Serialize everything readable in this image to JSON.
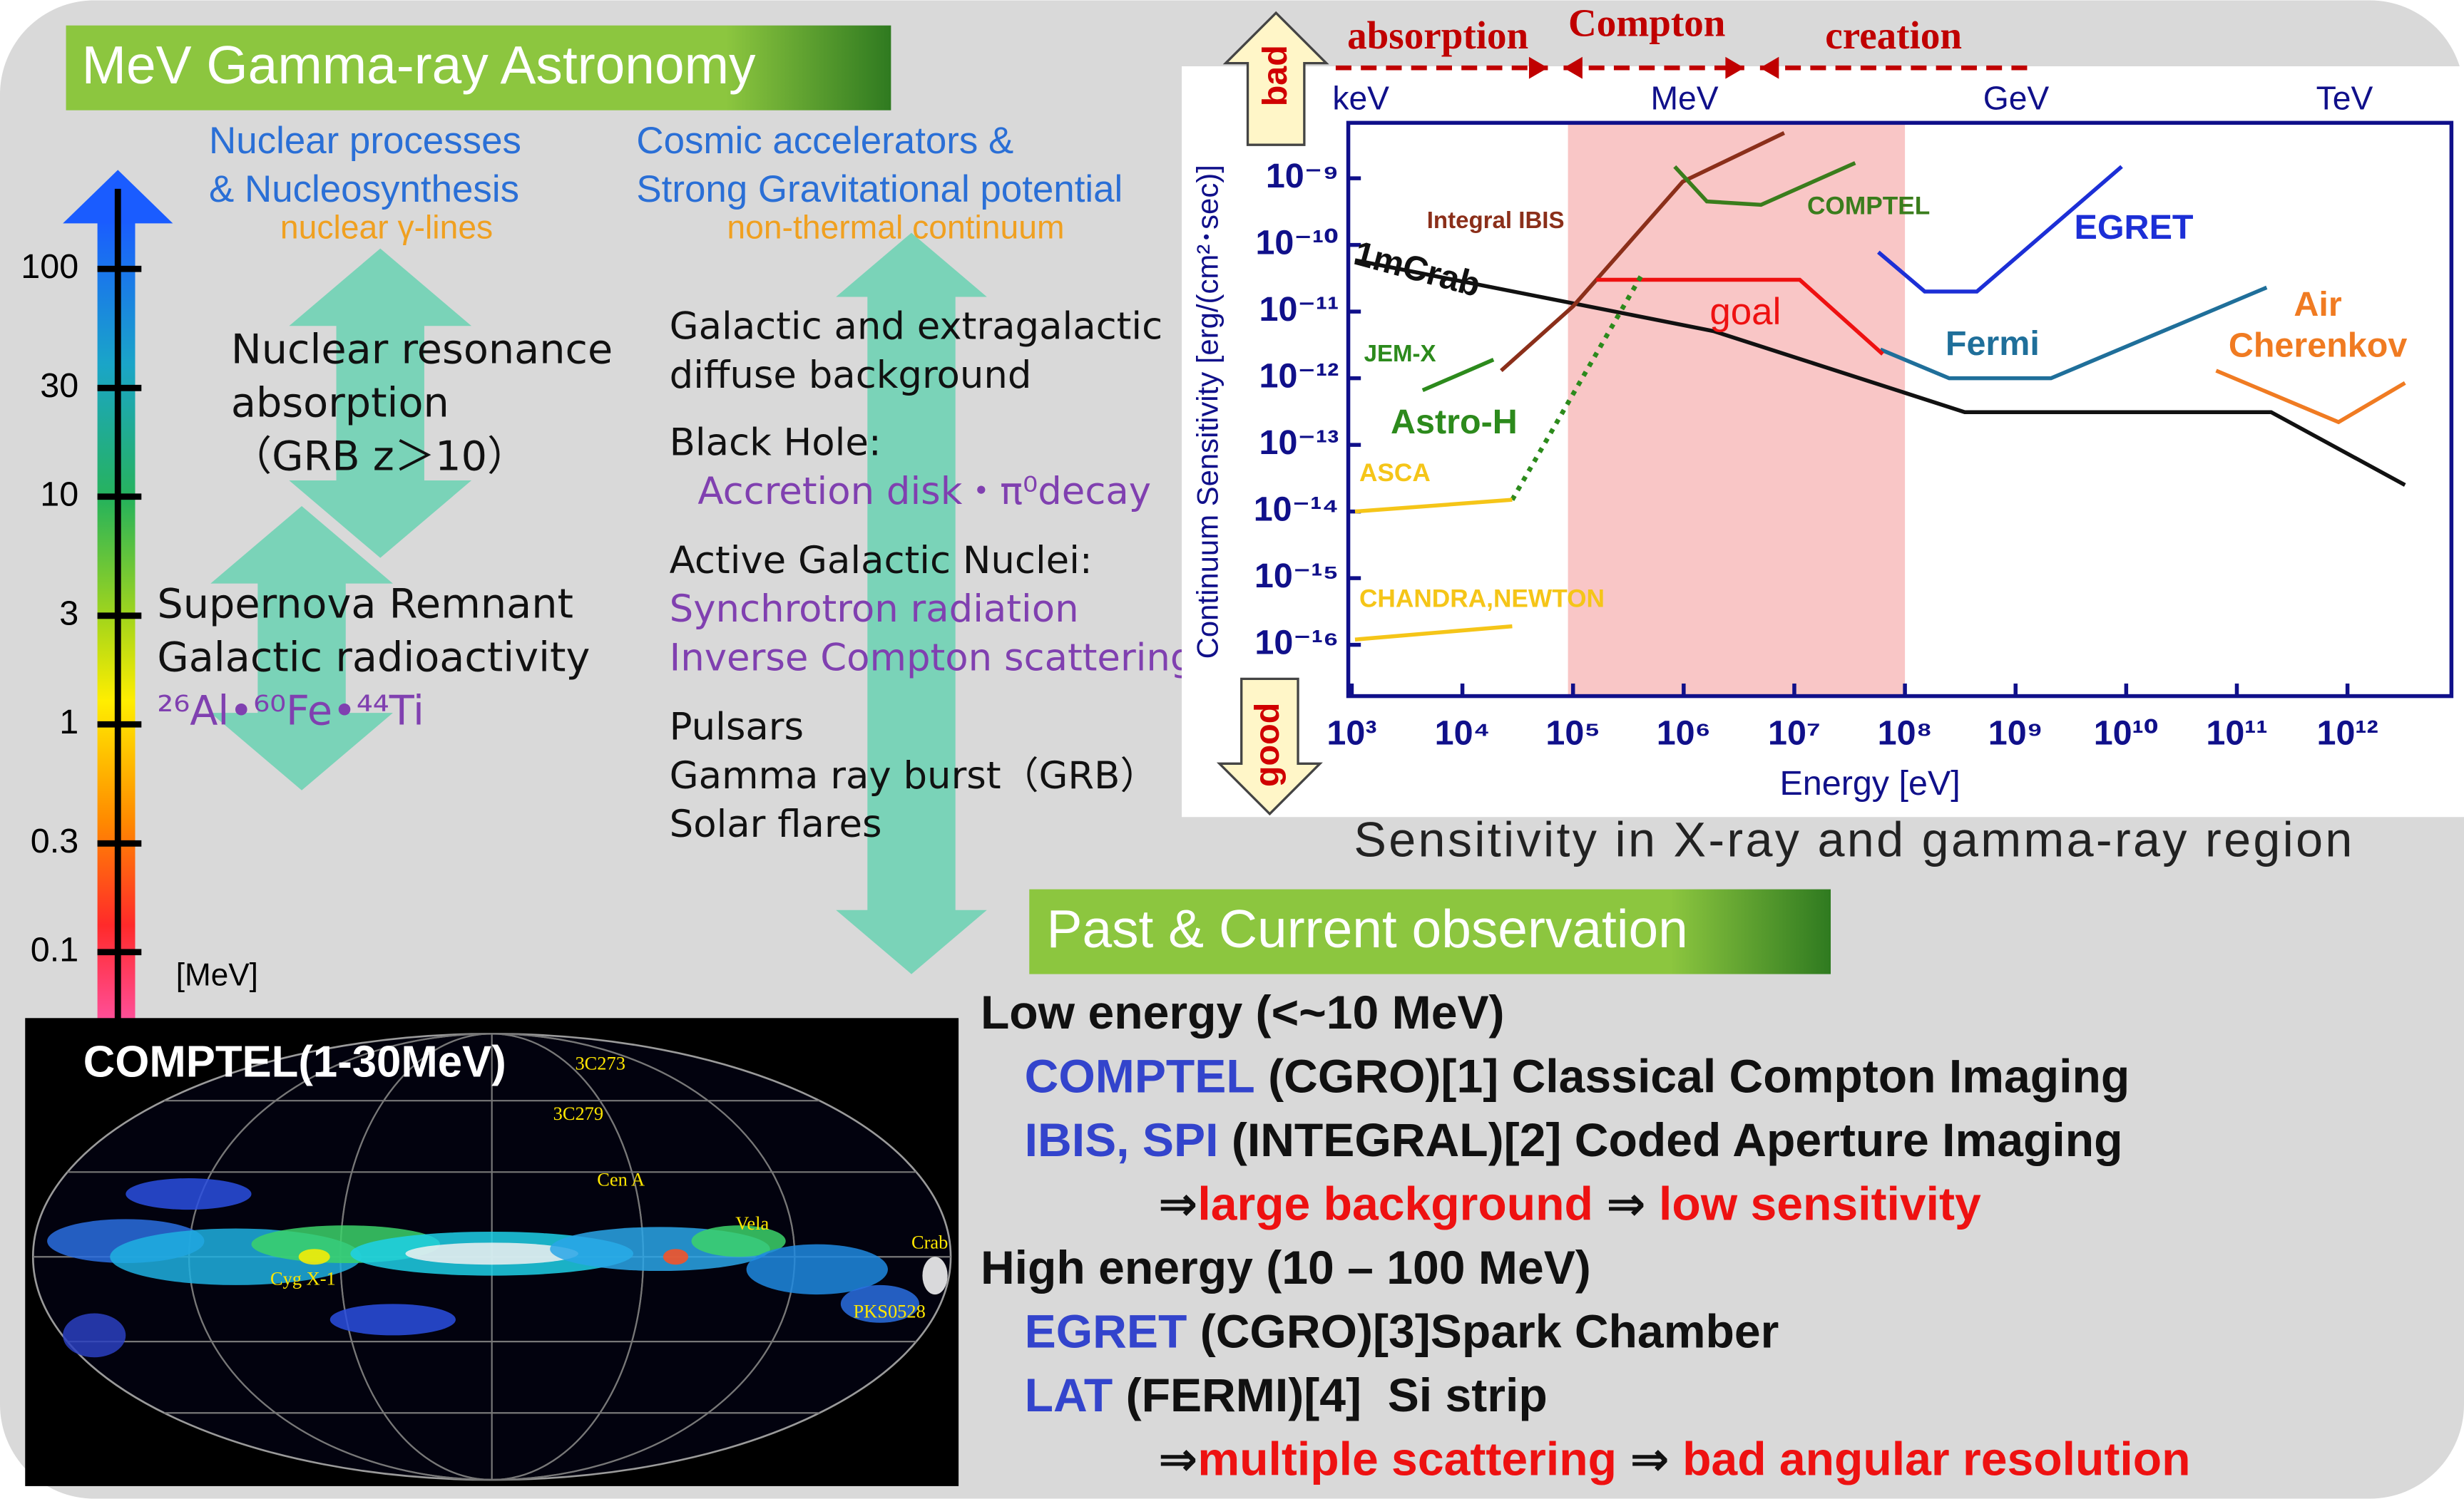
{
  "header": {
    "title": "MeV Gamma-ray Astronomy"
  },
  "energy_scale": {
    "ticks": [
      100,
      30,
      10,
      3,
      1,
      0.3,
      0.1
    ],
    "unit": "[MeV]"
  },
  "topics": [
    {
      "heading": [
        "Nuclear processes",
        "& Nucleosynthesis"
      ],
      "sub": "nuclear γ-lines"
    },
    {
      "heading": [
        "Cosmic accelerators &",
        "Strong Gravitational potential"
      ],
      "sub": "non-thermal continuum"
    }
  ],
  "left_items": [
    {
      "lines": [
        "Nuclear resonance",
        "absorption",
        "（GRB  z＞10）"
      ]
    },
    {
      "lines": [
        "Supernova Remnant",
        "Galactic radioactivity"
      ],
      "detail": [
        "²⁶Al•⁶⁰Fe•⁴⁴Ti"
      ]
    }
  ],
  "right_items": [
    {
      "lines": [
        "Galactic and extragalactic",
        "diffuse background"
      ]
    },
    {
      "lines": [
        "Black Hole:"
      ],
      "detail": [
        "Accretion disk・π⁰decay"
      ]
    },
    {
      "lines": [
        "Active Galactic Nuclei:"
      ],
      "detail": [
        "Synchrotron radiation",
        "Inverse Compton scattering"
      ]
    },
    {
      "lines": [
        "Pulsars",
        "Gamma ray burst（GRB）",
        "Solar flares"
      ]
    }
  ],
  "sky_map": {
    "title": "COMPTEL(1-30MeV)",
    "sources": [
      "3C273",
      "3C279",
      "Cen A",
      "Vela",
      "Crab",
      "Cyg X-1",
      "PKS0528"
    ]
  },
  "chart_data": {
    "type": "line",
    "log_scale": true,
    "processes": [
      "absorption",
      "Compton",
      "creation"
    ],
    "bands": [
      "keV",
      "MeV",
      "GeV",
      "TeV"
    ],
    "bad": "bad",
    "good": "good",
    "x_label": "Energy [eV]",
    "y_label": "Continuum Sensitivity [erg/(cm²･sec)]",
    "caption": "Sensitivity in X-ray and gamma-ray region",
    "region": [
      90000,
      100000000
    ],
    "region_color": "#f9c6c6",
    "xlim": [
      930,
      8700000000000
    ],
    "ylim": [
      1.7e-17,
      6.8e-09
    ],
    "xticks": [
      {
        "value": 1000.0,
        "label": "10³"
      },
      {
        "value": 10000.0,
        "label": "10⁴"
      },
      {
        "value": 100000.0,
        "label": "10⁵"
      },
      {
        "value": 1000000.0,
        "label": "10⁶"
      },
      {
        "value": 10000000.0,
        "label": "10⁷"
      },
      {
        "value": 100000000.0,
        "label": "10⁸"
      },
      {
        "value": 1000000000.0,
        "label": "10⁹"
      },
      {
        "value": 10000000000.0,
        "label": "10¹⁰"
      },
      {
        "value": 100000000000.0,
        "label": "10¹¹"
      },
      {
        "value": 1000000000000.0,
        "label": "10¹²"
      }
    ],
    "yticks": [
      {
        "value": 1e-09,
        "label": "10⁻⁹"
      },
      {
        "value": 1e-10,
        "label": "10⁻¹⁰"
      },
      {
        "value": 1e-11,
        "label": "10⁻¹¹"
      },
      {
        "value": 1e-12,
        "label": "10⁻¹²"
      },
      {
        "value": 1e-13,
        "label": "10⁻¹³"
      },
      {
        "value": 1e-14,
        "label": "10⁻¹⁴"
      },
      {
        "value": 1e-15,
        "label": "10⁻¹⁵"
      },
      {
        "value": 1e-16,
        "label": "10⁻¹⁶"
      }
    ],
    "series": [
      {
        "name": "1mCrab",
        "color": "#111111",
        "x": [
          1070,
          1860000,
          347000000,
          204000000000,
          3310000000000
        ],
        "values": [
          5.9e-11,
          5.1e-12,
          3.1e-13,
          3.1e-13,
          2.5e-14
        ]
      },
      {
        "name": "Integral IBIS",
        "color": "#8b2f1a",
        "x": [
          22400,
          100000,
          980000,
          8100000
        ],
        "values": [
          1.3e-12,
          1.2e-11,
          8.9e-10,
          4.8e-09
        ]
      },
      {
        "name": "COMPTEL",
        "color": "#3a7d1c",
        "x": [
          830000,
          1620000,
          5000000,
          35500000
        ],
        "values": [
          1.5e-09,
          4.5e-10,
          4e-10,
          1.7e-09
        ]
      },
      {
        "name": "EGRET",
        "color": "#1c2fd6",
        "x": [
          57500000,
          151000000,
          447000000,
          9100000000
        ],
        "values": [
          7.8e-11,
          2e-11,
          2e-11,
          1.5e-09
        ]
      },
      {
        "name": "Fermi",
        "color": "#1f6f9a",
        "x": [
          60000000,
          251000000,
          2090000000,
          186000000000
        ],
        "values": [
          2.7e-12,
          1e-12,
          1e-12,
          2.3e-11
        ]
      },
      {
        "name": "Air Cherenkov",
        "color": "#f07b22",
        "x": [
          65000000000,
          830000000000,
          3310000000000
        ],
        "values": [
          1.3e-12,
          2.2e-13,
          8.5e-13
        ]
      },
      {
        "name": "goal",
        "color": "#ee1111",
        "x": [
          162000,
          11200000,
          63000000
        ],
        "values": [
          3e-11,
          3e-11,
          2.3e-12
        ]
      },
      {
        "name": "JEM-X",
        "color": "#2c8a1c",
        "x": [
          4370,
          19100
        ],
        "values": [
          6.6e-13,
          1.9e-12
        ]
      },
      {
        "name": "Astro-H",
        "color": "#2c8a1c",
        "style": "dotted",
        "x": [
          28200,
          427000
        ],
        "values": [
          1.5e-14,
          3.8e-11
        ]
      },
      {
        "name": "ASCA",
        "color": "#f5c518",
        "x": [
          1070,
          28200
        ],
        "values": [
          1e-14,
          1.5e-14
        ]
      },
      {
        "name": "CHANDRA,NEWTON",
        "color": "#f5c518",
        "x": [
          1070,
          28200
        ],
        "values": [
          1.2e-16,
          1.9e-16
        ]
      }
    ]
  },
  "observation": {
    "title": "Past & Current observation",
    "lines": [
      {
        "indent": 0,
        "segments": [
          {
            "text": "Low energy (<~10 MeV)",
            "color": "#111111"
          }
        ]
      },
      {
        "indent": 1,
        "segments": [
          {
            "text": "COMPTEL",
            "color": "#3344cc"
          },
          {
            "text": " (CGRO)[1] Classical Compton Imaging",
            "color": "#111111"
          }
        ]
      },
      {
        "indent": 1,
        "segments": [
          {
            "text": "IBIS, SPI",
            "color": "#3344cc"
          },
          {
            "text": " (INTEGRAL)[2] Coded Aperture Imaging",
            "color": "#111111"
          }
        ]
      },
      {
        "indent": 2,
        "segments": [
          {
            "text": "⇒",
            "color": "#111111"
          },
          {
            "text": "large background",
            "color": "#ee1111"
          },
          {
            "text": " ⇒ ",
            "color": "#111111"
          },
          {
            "text": "low sensitivity",
            "color": "#ee1111"
          }
        ]
      },
      {
        "indent": 0,
        "segments": [
          {
            "text": "High energy (10 – 100 MeV)",
            "color": "#111111"
          }
        ]
      },
      {
        "indent": 1,
        "segments": [
          {
            "text": "EGRET",
            "color": "#3344cc"
          },
          {
            "text": " (CGRO)[3]Spark Chamber",
            "color": "#111111"
          }
        ]
      },
      {
        "indent": 1,
        "segments": [
          {
            "text": "LAT",
            "color": "#3344cc"
          },
          {
            "text": " (FERMI)[4]  Si strip",
            "color": "#111111"
          }
        ]
      },
      {
        "indent": 2,
        "segments": [
          {
            "text": "⇒",
            "color": "#111111"
          },
          {
            "text": "multiple scattering",
            "color": "#ee1111"
          },
          {
            "text": " ⇒ ",
            "color": "#111111"
          },
          {
            "text": "bad angular resolution",
            "color": "#ee1111"
          }
        ]
      }
    ]
  }
}
